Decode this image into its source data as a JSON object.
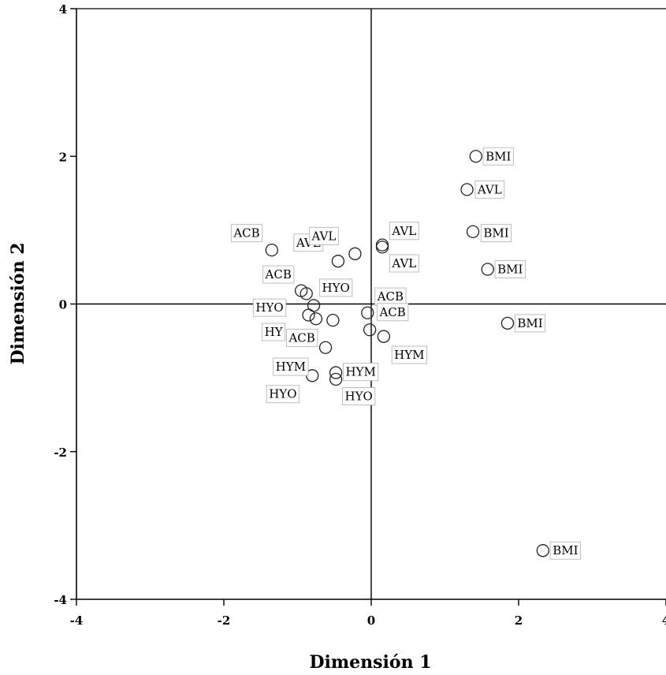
{
  "chart_data": {
    "type": "scatter",
    "title": "",
    "xlabel": "Dimensión 1",
    "ylabel": "Dimensión 2",
    "xlim": [
      -4,
      4
    ],
    "ylim": [
      -4,
      4
    ],
    "xticks": [
      "-4",
      "-2",
      "0",
      "2",
      "4"
    ],
    "yticks": [
      "-4",
      "-2",
      "0",
      "2",
      "4"
    ],
    "grid": false,
    "reference_lines": [
      0,
      0
    ],
    "points": [
      {
        "x": 1.42,
        "y": 2.0,
        "label": "BMI"
      },
      {
        "x": 1.3,
        "y": 1.55,
        "label": "AVL"
      },
      {
        "x": 1.38,
        "y": 0.98,
        "label": "BMI"
      },
      {
        "x": 1.58,
        "y": 0.47,
        "label": "BMI"
      },
      {
        "x": 1.85,
        "y": -0.26,
        "label": "BMI"
      },
      {
        "x": 2.33,
        "y": -3.34,
        "label": "BMI"
      },
      {
        "x": 0.15,
        "y": 0.8,
        "label": "AVL"
      },
      {
        "x": 0.15,
        "y": 0.77,
        "label": "AVL"
      },
      {
        "x": -1.35,
        "y": 0.73,
        "label": "ACB"
      },
      {
        "x": -0.45,
        "y": 0.58,
        "label": "AVL"
      },
      {
        "x": -0.22,
        "y": 0.68,
        "label": "AVL"
      },
      {
        "x": -0.95,
        "y": 0.18,
        "label": "ACB"
      },
      {
        "x": -0.88,
        "y": 0.14,
        "label": "HYO"
      },
      {
        "x": -0.78,
        "y": -0.02,
        "label": "HYO"
      },
      {
        "x": -0.85,
        "y": -0.15,
        "label": "HYO"
      },
      {
        "x": -0.75,
        "y": -0.2,
        "label": "HYM"
      },
      {
        "x": -0.52,
        "y": -0.22,
        "label": "ACB"
      },
      {
        "x": -0.05,
        "y": -0.12,
        "label": "ACB"
      },
      {
        "x": -0.02,
        "y": -0.35,
        "label": "ACB"
      },
      {
        "x": 0.17,
        "y": -0.44,
        "label": "HYM"
      },
      {
        "x": -0.62,
        "y": -0.59,
        "label": "ACB"
      },
      {
        "x": -0.48,
        "y": -0.93,
        "label": "HYM"
      },
      {
        "x": -0.48,
        "y": -1.02,
        "label": "HYO"
      },
      {
        "x": -0.8,
        "y": -0.97,
        "label": "HYM"
      }
    ],
    "labels": [
      {
        "text": "BMI",
        "x": 1.52,
        "y": 2.0
      },
      {
        "text": "AVL",
        "x": 1.41,
        "y": 1.55
      },
      {
        "text": "BMI",
        "x": 1.49,
        "y": 0.96
      },
      {
        "text": "BMI",
        "x": 1.68,
        "y": 0.47
      },
      {
        "text": "BMI",
        "x": 1.95,
        "y": -0.26
      },
      {
        "text": "BMI",
        "x": 2.43,
        "y": -3.34
      },
      {
        "text": "AVL",
        "x": 0.25,
        "y": 0.99
      },
      {
        "text": "AVL",
        "x": 0.25,
        "y": 0.55
      },
      {
        "text": "ACB",
        "x": -1.9,
        "y": 0.96
      },
      {
        "text": "AVL",
        "x": -1.05,
        "y": 0.83
      },
      {
        "text": "AVL",
        "x": -0.84,
        "y": 0.92
      },
      {
        "text": "ACB",
        "x": -1.47,
        "y": 0.4
      },
      {
        "text": "HYO",
        "x": -0.7,
        "y": 0.22
      },
      {
        "text": "HYO",
        "x": -1.6,
        "y": -0.05
      },
      {
        "text": "HY",
        "x": -1.48,
        "y": -0.38
      },
      {
        "text": "ACB",
        "x": -1.15,
        "y": -0.46
      },
      {
        "text": "ACB",
        "x": 0.05,
        "y": 0.1
      },
      {
        "text": "ACB",
        "x": 0.08,
        "y": -0.11
      },
      {
        "text": "HYM",
        "x": 0.28,
        "y": -0.69
      },
      {
        "text": "HYM",
        "x": -1.33,
        "y": -0.85
      },
      {
        "text": "HYM",
        "x": -0.38,
        "y": -0.92
      },
      {
        "text": "HYO",
        "x": -1.42,
        "y": -1.22
      },
      {
        "text": "HYO",
        "x": -0.39,
        "y": -1.25
      }
    ]
  }
}
